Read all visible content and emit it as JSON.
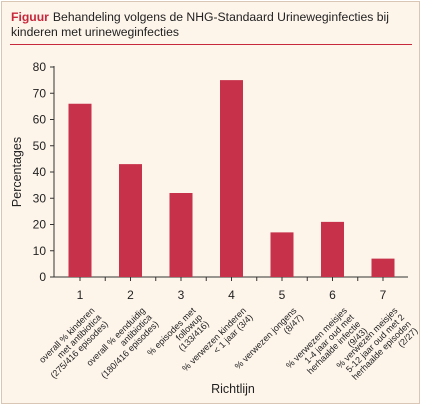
{
  "figure": {
    "label": "Figuur",
    "title": "Behandeling volgens de NHG-Standaard Urineweginfecties bij kinderen met urineweginfecties"
  },
  "chart_data": {
    "type": "bar",
    "categories": [
      "1",
      "2",
      "3",
      "4",
      "5",
      "6",
      "7"
    ],
    "category_descriptions": [
      [
        "overall % kinderen",
        "met antibiotica",
        "(275/416 episodes)"
      ],
      [
        "overall % eenduidig",
        "antibiotica",
        "(180/416 episodes)"
      ],
      [
        "% episodes met",
        "followup",
        "(133/416)"
      ],
      [
        "% verwezen kinderen",
        "< 1 jaar (3/4)"
      ],
      [
        "% verwezen jongens",
        "(8/47)"
      ],
      [
        "% verwezen meisjes",
        "1-4 jaar oud met",
        "herhaalde infectie",
        "(9/43)"
      ],
      [
        "% verwezen meisjes",
        "5-12 jaar oud met 2",
        "herhaalde episoden",
        "(2/27)"
      ]
    ],
    "values": [
      66,
      43,
      32,
      75,
      17,
      21,
      7
    ],
    "xlabel": "Richtlijn",
    "ylabel": "Percentages",
    "ylim": [
      0,
      80
    ],
    "yticks": [
      0,
      10,
      20,
      30,
      40,
      50,
      60,
      70,
      80
    ],
    "grid": false,
    "bar_color": "#c8314a",
    "accent_color": "#c8283c",
    "background_color": "#fdf4ea"
  }
}
